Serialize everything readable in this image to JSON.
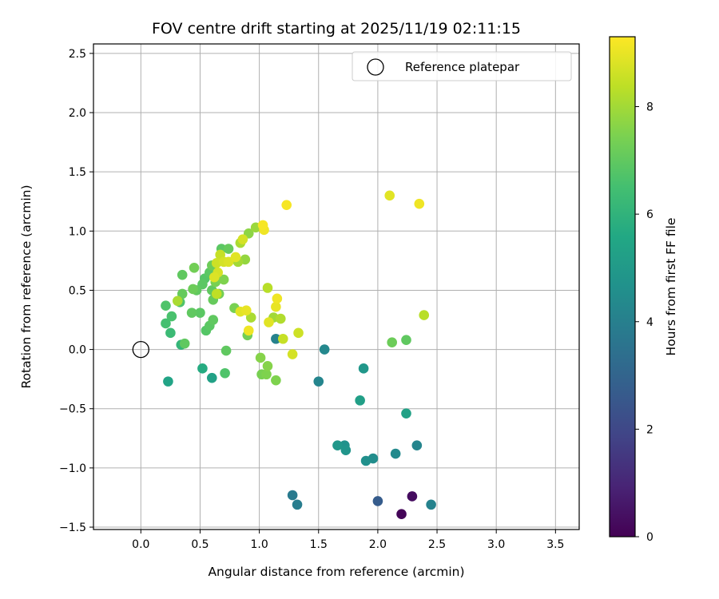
{
  "chart_data": {
    "type": "scatter",
    "title": "FOV centre drift starting at 2025/11/19 02:11:15",
    "xlabel": "Angular distance from reference (arcmin)",
    "ylabel": "Rotation from reference (arcmin)",
    "xlim": [
      -0.4,
      3.7
    ],
    "ylim": [
      -1.52,
      2.58
    ],
    "xticks": [
      0.0,
      0.5,
      1.0,
      1.5,
      2.0,
      2.5,
      3.0,
      3.5
    ],
    "xtick_labels": [
      "0.0",
      "0.5",
      "1.0",
      "1.5",
      "2.0",
      "2.5",
      "3.0",
      "3.5"
    ],
    "yticks": [
      -1.5,
      -1.0,
      -0.5,
      0.0,
      0.5,
      1.0,
      1.5,
      2.0,
      2.5
    ],
    "ytick_labels": [
      "−1.5",
      "−1.0",
      "−0.5",
      "0.0",
      "0.5",
      "1.0",
      "1.5",
      "2.0",
      "2.5"
    ],
    "grid": true,
    "legend": {
      "position": "top-right",
      "entries": [
        "Reference platepar"
      ]
    },
    "reference_point": {
      "x": 0.0,
      "y": 0.0,
      "label": "Reference platepar"
    },
    "colorbar": {
      "label": "Hours from first FF file",
      "min": 0,
      "max": 9.3,
      "ticks": [
        0,
        2,
        4,
        6,
        8
      ],
      "tick_labels": [
        "0",
        "2",
        "4",
        "6",
        "8"
      ],
      "colormap": "viridis"
    },
    "points": [
      {
        "x": 2.2,
        "y": -1.39,
        "h": 0.1
      },
      {
        "x": 2.29,
        "y": -1.24,
        "h": 0.3
      },
      {
        "x": 2.0,
        "y": -1.28,
        "h": 2.7
      },
      {
        "x": 1.28,
        "y": -1.23,
        "h": 3.8
      },
      {
        "x": 1.32,
        "y": -1.31,
        "h": 3.9
      },
      {
        "x": 2.45,
        "y": -1.31,
        "h": 4.1
      },
      {
        "x": 2.33,
        "y": -0.81,
        "h": 4.2
      },
      {
        "x": 2.15,
        "y": -0.88,
        "h": 4.4
      },
      {
        "x": 1.96,
        "y": -0.92,
        "h": 4.5
      },
      {
        "x": 1.9,
        "y": -0.94,
        "h": 4.6
      },
      {
        "x": 1.72,
        "y": -0.81,
        "h": 4.7
      },
      {
        "x": 1.73,
        "y": -0.85,
        "h": 4.8
      },
      {
        "x": 1.66,
        "y": -0.81,
        "h": 4.9
      },
      {
        "x": 1.5,
        "y": -0.27,
        "h": 4.2
      },
      {
        "x": 1.55,
        "y": 0.0,
        "h": 4.3
      },
      {
        "x": 1.14,
        "y": 0.09,
        "h": 4.1
      },
      {
        "x": 1.88,
        "y": -0.16,
        "h": 4.9
      },
      {
        "x": 1.85,
        "y": -0.43,
        "h": 5.2
      },
      {
        "x": 2.24,
        "y": -0.54,
        "h": 5.3
      },
      {
        "x": 0.6,
        "y": -0.24,
        "h": 5.3
      },
      {
        "x": 0.52,
        "y": -0.16,
        "h": 5.7
      },
      {
        "x": 0.23,
        "y": -0.27,
        "h": 5.4
      },
      {
        "x": 0.34,
        "y": 0.04,
        "h": 6.1
      },
      {
        "x": 0.25,
        "y": 0.14,
        "h": 6.3
      },
      {
        "x": 0.21,
        "y": 0.22,
        "h": 6.5
      },
      {
        "x": 0.26,
        "y": 0.28,
        "h": 6.6
      },
      {
        "x": 0.21,
        "y": 0.37,
        "h": 6.7
      },
      {
        "x": 0.33,
        "y": 0.4,
        "h": 6.7
      },
      {
        "x": 0.37,
        "y": 0.05,
        "h": 7.0
      },
      {
        "x": 0.71,
        "y": -0.2,
        "h": 6.7
      },
      {
        "x": 0.72,
        "y": -0.01,
        "h": 7.0
      },
      {
        "x": 0.55,
        "y": 0.16,
        "h": 6.8
      },
      {
        "x": 0.58,
        "y": 0.2,
        "h": 6.9
      },
      {
        "x": 0.61,
        "y": 0.25,
        "h": 7.0
      },
      {
        "x": 0.5,
        "y": 0.31,
        "h": 6.9
      },
      {
        "x": 0.43,
        "y": 0.31,
        "h": 7.0
      },
      {
        "x": 0.35,
        "y": 0.47,
        "h": 7.1
      },
      {
        "x": 0.47,
        "y": 0.5,
        "h": 7.0
      },
      {
        "x": 0.44,
        "y": 0.51,
        "h": 7.2
      },
      {
        "x": 0.52,
        "y": 0.55,
        "h": 6.9
      },
      {
        "x": 0.35,
        "y": 0.63,
        "h": 7.0
      },
      {
        "x": 0.45,
        "y": 0.69,
        "h": 7.3
      },
      {
        "x": 0.54,
        "y": 0.6,
        "h": 6.8
      },
      {
        "x": 0.58,
        "y": 0.65,
        "h": 6.9
      },
      {
        "x": 0.6,
        "y": 0.5,
        "h": 7.0
      },
      {
        "x": 0.61,
        "y": 0.42,
        "h": 7.1
      },
      {
        "x": 0.66,
        "y": 0.47,
        "h": 7.3
      },
      {
        "x": 0.63,
        "y": 0.57,
        "h": 7.4
      },
      {
        "x": 0.7,
        "y": 0.59,
        "h": 7.5
      },
      {
        "x": 0.6,
        "y": 0.71,
        "h": 7.2
      },
      {
        "x": 0.68,
        "y": 0.75,
        "h": 7.4
      },
      {
        "x": 0.68,
        "y": 0.85,
        "h": 6.9
      },
      {
        "x": 0.74,
        "y": 0.85,
        "h": 7.1
      },
      {
        "x": 0.79,
        "y": 0.35,
        "h": 7.4
      },
      {
        "x": 0.9,
        "y": 0.12,
        "h": 7.3
      },
      {
        "x": 1.01,
        "y": -0.07,
        "h": 7.6
      },
      {
        "x": 1.02,
        "y": -0.21,
        "h": 7.4
      },
      {
        "x": 1.06,
        "y": -0.21,
        "h": 7.5
      },
      {
        "x": 1.07,
        "y": -0.14,
        "h": 7.6
      },
      {
        "x": 1.14,
        "y": -0.26,
        "h": 7.5
      },
      {
        "x": 0.88,
        "y": 0.76,
        "h": 7.8
      },
      {
        "x": 0.82,
        "y": 0.74,
        "h": 8.0
      },
      {
        "x": 0.84,
        "y": 0.9,
        "h": 8.1
      },
      {
        "x": 0.91,
        "y": 0.98,
        "h": 7.7
      },
      {
        "x": 0.97,
        "y": 1.03,
        "h": 7.9
      },
      {
        "x": 0.93,
        "y": 0.27,
        "h": 8.1
      },
      {
        "x": 1.07,
        "y": 0.52,
        "h": 8.3
      },
      {
        "x": 1.12,
        "y": 0.27,
        "h": 8.0
      },
      {
        "x": 1.18,
        "y": 0.26,
        "h": 8.2
      },
      {
        "x": 1.2,
        "y": 0.09,
        "h": 8.5
      },
      {
        "x": 1.28,
        "y": -0.04,
        "h": 8.7
      },
      {
        "x": 1.33,
        "y": 0.14,
        "h": 8.6
      },
      {
        "x": 0.31,
        "y": 0.41,
        "h": 8.1
      },
      {
        "x": 0.64,
        "y": 0.47,
        "h": 8.4
      },
      {
        "x": 0.67,
        "y": 0.8,
        "h": 8.5
      },
      {
        "x": 0.64,
        "y": 0.73,
        "h": 8.6
      },
      {
        "x": 0.7,
        "y": 0.74,
        "h": 8.7
      },
      {
        "x": 0.74,
        "y": 0.74,
        "h": 8.8
      },
      {
        "x": 0.8,
        "y": 0.78,
        "h": 8.9
      },
      {
        "x": 0.65,
        "y": 0.65,
        "h": 8.7
      },
      {
        "x": 0.62,
        "y": 0.61,
        "h": 8.8
      },
      {
        "x": 0.86,
        "y": 0.93,
        "h": 8.7
      },
      {
        "x": 0.84,
        "y": 0.32,
        "h": 8.9
      },
      {
        "x": 0.89,
        "y": 0.33,
        "h": 9.0
      },
      {
        "x": 0.91,
        "y": 0.16,
        "h": 9.1
      },
      {
        "x": 1.08,
        "y": 0.23,
        "h": 8.9
      },
      {
        "x": 1.14,
        "y": 0.36,
        "h": 9.0
      },
      {
        "x": 1.15,
        "y": 0.43,
        "h": 9.1
      },
      {
        "x": 1.03,
        "y": 1.05,
        "h": 9.2
      },
      {
        "x": 1.04,
        "y": 1.01,
        "h": 9.1
      },
      {
        "x": 1.23,
        "y": 1.22,
        "h": 9.2
      },
      {
        "x": 2.1,
        "y": 1.3,
        "h": 8.9
      },
      {
        "x": 2.35,
        "y": 1.23,
        "h": 9.1
      },
      {
        "x": 2.39,
        "y": 0.29,
        "h": 8.3
      },
      {
        "x": 2.12,
        "y": 0.06,
        "h": 7.2
      },
      {
        "x": 2.24,
        "y": 0.08,
        "h": 7.0
      }
    ]
  }
}
